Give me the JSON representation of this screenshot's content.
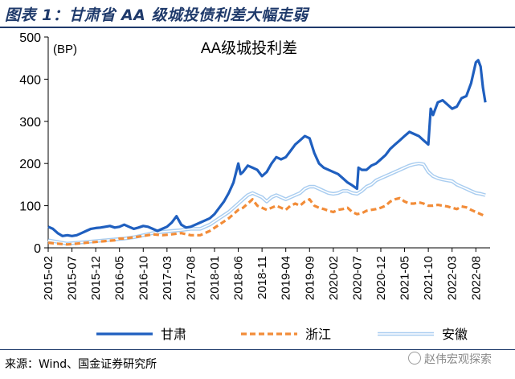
{
  "figure": {
    "title": "图表 1：甘肃省 AA 级城投债利差大幅走弱",
    "source": "来源：Wind、国金证券研究所",
    "watermark": "赵伟宏观探索"
  },
  "chart_data": {
    "type": "line",
    "title": "AA级城投利差",
    "ylabel": "(BP)",
    "xlabel": "",
    "ylim": [
      0,
      500
    ],
    "yticks": [
      0,
      100,
      200,
      300,
      400,
      500
    ],
    "xlim": [
      0,
      93
    ],
    "x_tick_labels": [
      "2015-02",
      "2015-07",
      "2015-12",
      "2016-05",
      "2016-10",
      "2017-03",
      "2017-08",
      "2018-01",
      "2018-06",
      "2018-11",
      "2019-04",
      "2019-09",
      "2020-02",
      "2020-07",
      "2020-12",
      "2021-05",
      "2021-10",
      "2022-03",
      "2022-08"
    ],
    "x_tick_positions": [
      0,
      5,
      10,
      15,
      20,
      25,
      30,
      35,
      40,
      45,
      50,
      55,
      60,
      65,
      70,
      75,
      80,
      85,
      90
    ],
    "legend_position": "bottom",
    "series": [
      {
        "name": "甘肃",
        "color": "#1f5fbf",
        "style": "solid",
        "width": 3.2,
        "points": [
          [
            0,
            50
          ],
          [
            1,
            45
          ],
          [
            2,
            35
          ],
          [
            3,
            28
          ],
          [
            4,
            30
          ],
          [
            5,
            28
          ],
          [
            6,
            30
          ],
          [
            7,
            35
          ],
          [
            8,
            40
          ],
          [
            9,
            45
          ],
          [
            10,
            47
          ],
          [
            11,
            48
          ],
          [
            12,
            50
          ],
          [
            13,
            52
          ],
          [
            14,
            48
          ],
          [
            15,
            50
          ],
          [
            16,
            55
          ],
          [
            17,
            50
          ],
          [
            18,
            45
          ],
          [
            19,
            48
          ],
          [
            20,
            52
          ],
          [
            21,
            50
          ],
          [
            22,
            45
          ],
          [
            23,
            40
          ],
          [
            24,
            45
          ],
          [
            25,
            50
          ],
          [
            26,
            60
          ],
          [
            27,
            75
          ],
          [
            28,
            55
          ],
          [
            29,
            48
          ],
          [
            30,
            50
          ],
          [
            31,
            55
          ],
          [
            32,
            60
          ],
          [
            33,
            65
          ],
          [
            34,
            70
          ],
          [
            35,
            80
          ],
          [
            36,
            95
          ],
          [
            37,
            110
          ],
          [
            38,
            130
          ],
          [
            39,
            155
          ],
          [
            40,
            200
          ],
          [
            40.5,
            175
          ],
          [
            41,
            180
          ],
          [
            42,
            195
          ],
          [
            43,
            190
          ],
          [
            44,
            185
          ],
          [
            45,
            170
          ],
          [
            46,
            180
          ],
          [
            47,
            200
          ],
          [
            48,
            215
          ],
          [
            49,
            210
          ],
          [
            50,
            215
          ],
          [
            51,
            230
          ],
          [
            52,
            245
          ],
          [
            53,
            255
          ],
          [
            54,
            265
          ],
          [
            55,
            260
          ],
          [
            56,
            225
          ],
          [
            57,
            200
          ],
          [
            58,
            190
          ],
          [
            59,
            185
          ],
          [
            60,
            180
          ],
          [
            61,
            175
          ],
          [
            62,
            165
          ],
          [
            63,
            155
          ],
          [
            64,
            148
          ],
          [
            65,
            140
          ],
          [
            65.3,
            190
          ],
          [
            66,
            185
          ],
          [
            67,
            185
          ],
          [
            68,
            195
          ],
          [
            69,
            200
          ],
          [
            70,
            210
          ],
          [
            71,
            220
          ],
          [
            72,
            235
          ],
          [
            73,
            245
          ],
          [
            74,
            255
          ],
          [
            75,
            265
          ],
          [
            76,
            275
          ],
          [
            77,
            270
          ],
          [
            78,
            265
          ],
          [
            79,
            255
          ],
          [
            80,
            245
          ],
          [
            80.5,
            330
          ],
          [
            81,
            315
          ],
          [
            82,
            345
          ],
          [
            83,
            350
          ],
          [
            84,
            340
          ],
          [
            85,
            330
          ],
          [
            86,
            335
          ],
          [
            87,
            355
          ],
          [
            88,
            360
          ],
          [
            89,
            390
          ],
          [
            90,
            440
          ],
          [
            90.5,
            445
          ],
          [
            91,
            430
          ],
          [
            91.5,
            380
          ],
          [
            92,
            345
          ]
        ]
      },
      {
        "name": "浙江",
        "color": "#f28c38",
        "style": "dashed",
        "width": 3.2,
        "points": [
          [
            0,
            12
          ],
          [
            2,
            10
          ],
          [
            4,
            8
          ],
          [
            6,
            10
          ],
          [
            8,
            12
          ],
          [
            10,
            14
          ],
          [
            12,
            16
          ],
          [
            14,
            18
          ],
          [
            15,
            22
          ],
          [
            16,
            22
          ],
          [
            18,
            25
          ],
          [
            20,
            28
          ],
          [
            22,
            32
          ],
          [
            24,
            30
          ],
          [
            26,
            32
          ],
          [
            28,
            35
          ],
          [
            30,
            30
          ],
          [
            32,
            30
          ],
          [
            34,
            40
          ],
          [
            36,
            55
          ],
          [
            38,
            70
          ],
          [
            40,
            90
          ],
          [
            41,
            95
          ],
          [
            42,
            105
          ],
          [
            43,
            115
          ],
          [
            44,
            100
          ],
          [
            45,
            95
          ],
          [
            46,
            90
          ],
          [
            47,
            95
          ],
          [
            48,
            100
          ],
          [
            49,
            95
          ],
          [
            50,
            90
          ],
          [
            51,
            100
          ],
          [
            52,
            105
          ],
          [
            53,
            100
          ],
          [
            54,
            110
          ],
          [
            55,
            115
          ],
          [
            56,
            100
          ],
          [
            57,
            95
          ],
          [
            58,
            92
          ],
          [
            59,
            88
          ],
          [
            60,
            85
          ],
          [
            61,
            90
          ],
          [
            62,
            92
          ],
          [
            63,
            95
          ],
          [
            64,
            85
          ],
          [
            65,
            80
          ],
          [
            66,
            82
          ],
          [
            67,
            88
          ],
          [
            68,
            90
          ],
          [
            69,
            92
          ],
          [
            70,
            95
          ],
          [
            71,
            100
          ],
          [
            72,
            110
          ],
          [
            73,
            115
          ],
          [
            74,
            118
          ],
          [
            75,
            110
          ],
          [
            76,
            105
          ],
          [
            77,
            105
          ],
          [
            78,
            108
          ],
          [
            79,
            105
          ],
          [
            80,
            100
          ],
          [
            81,
            100
          ],
          [
            82,
            102
          ],
          [
            83,
            100
          ],
          [
            84,
            98
          ],
          [
            85,
            95
          ],
          [
            86,
            92
          ],
          [
            87,
            98
          ],
          [
            88,
            96
          ],
          [
            89,
            90
          ],
          [
            90,
            85
          ],
          [
            91,
            80
          ],
          [
            92,
            75
          ]
        ]
      },
      {
        "name": "安徽",
        "color": "#a9cdf0",
        "style": "double",
        "width": 2.4,
        "points": [
          [
            0,
            18
          ],
          [
            2,
            14
          ],
          [
            4,
            10
          ],
          [
            6,
            12
          ],
          [
            8,
            14
          ],
          [
            10,
            16
          ],
          [
            12,
            18
          ],
          [
            14,
            20
          ],
          [
            16,
            22
          ],
          [
            18,
            25
          ],
          [
            20,
            30
          ],
          [
            22,
            35
          ],
          [
            24,
            38
          ],
          [
            26,
            40
          ],
          [
            28,
            42
          ],
          [
            30,
            45
          ],
          [
            32,
            45
          ],
          [
            34,
            55
          ],
          [
            36,
            70
          ],
          [
            38,
            85
          ],
          [
            40,
            105
          ],
          [
            41,
            115
          ],
          [
            42,
            125
          ],
          [
            43,
            130
          ],
          [
            44,
            125
          ],
          [
            45,
            120
          ],
          [
            46,
            110
          ],
          [
            47,
            120
          ],
          [
            48,
            125
          ],
          [
            49,
            120
          ],
          [
            50,
            115
          ],
          [
            51,
            120
          ],
          [
            52,
            125
          ],
          [
            53,
            130
          ],
          [
            54,
            140
          ],
          [
            55,
            145
          ],
          [
            56,
            145
          ],
          [
            57,
            140
          ],
          [
            58,
            135
          ],
          [
            59,
            130
          ],
          [
            60,
            128
          ],
          [
            61,
            130
          ],
          [
            62,
            135
          ],
          [
            63,
            135
          ],
          [
            64,
            130
          ],
          [
            65,
            128
          ],
          [
            66,
            135
          ],
          [
            67,
            145
          ],
          [
            68,
            150
          ],
          [
            69,
            160
          ],
          [
            70,
            165
          ],
          [
            71,
            170
          ],
          [
            72,
            175
          ],
          [
            73,
            180
          ],
          [
            74,
            185
          ],
          [
            75,
            190
          ],
          [
            76,
            195
          ],
          [
            77,
            198
          ],
          [
            78,
            200
          ],
          [
            79,
            198
          ],
          [
            80,
            180
          ],
          [
            81,
            170
          ],
          [
            82,
            165
          ],
          [
            83,
            162
          ],
          [
            84,
            160
          ],
          [
            85,
            158
          ],
          [
            86,
            150
          ],
          [
            87,
            145
          ],
          [
            88,
            140
          ],
          [
            89,
            135
          ],
          [
            90,
            130
          ],
          [
            91,
            128
          ],
          [
            92,
            125
          ]
        ]
      }
    ]
  }
}
